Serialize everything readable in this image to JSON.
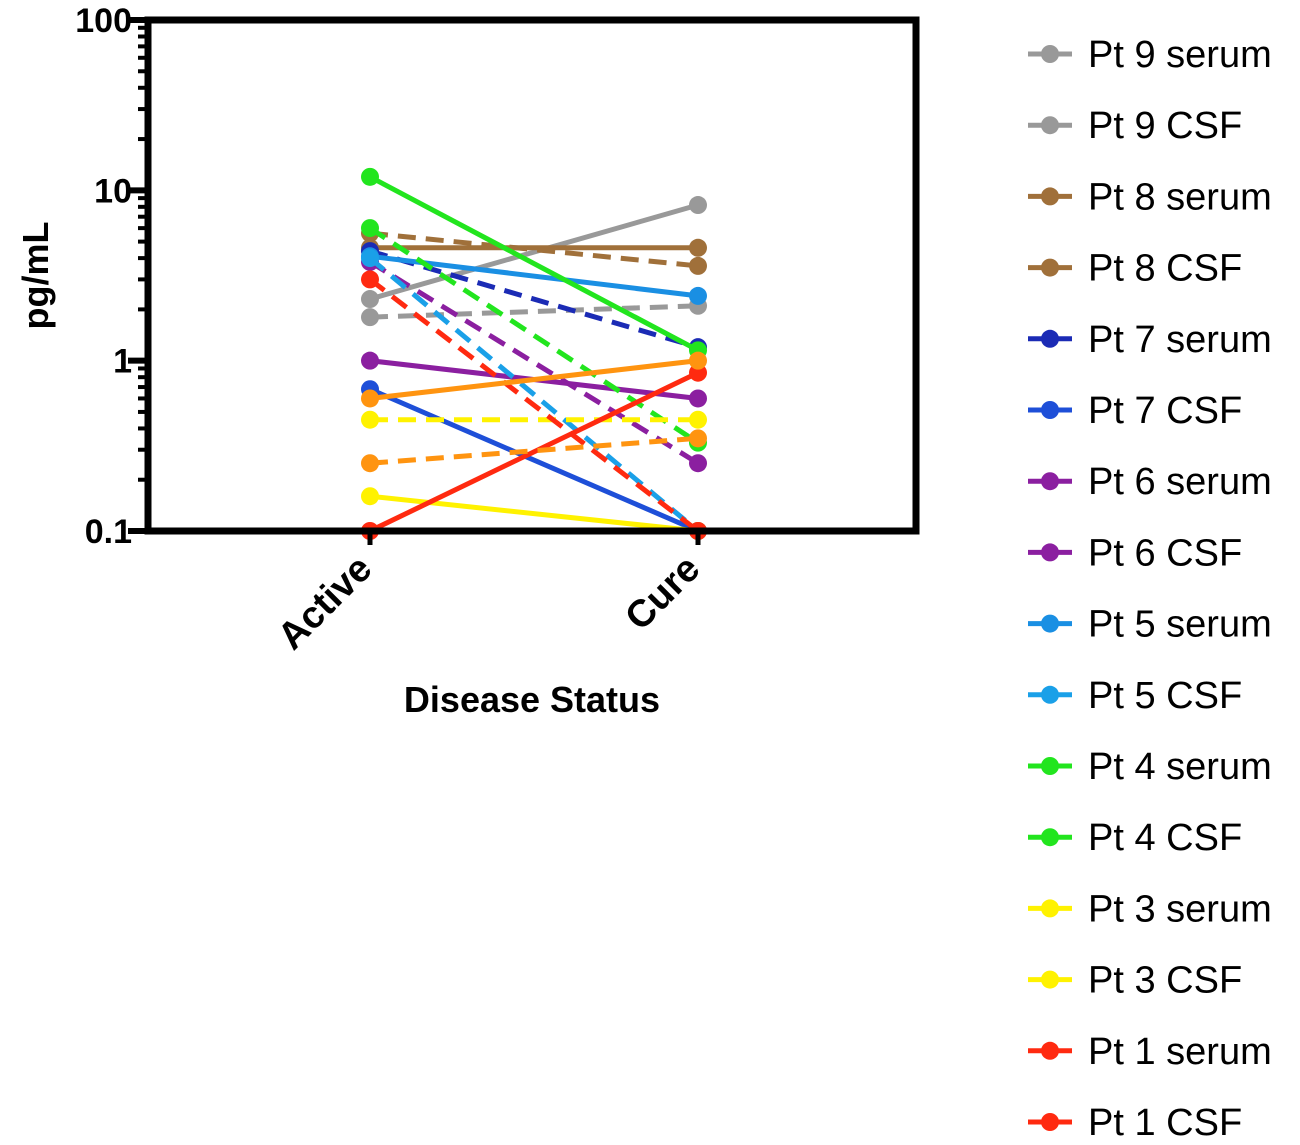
{
  "chart_data": {
    "type": "line",
    "title": "",
    "xlabel": "Disease Status",
    "ylabel": "pg/mL",
    "yscale": "log",
    "ylim": [
      0.1,
      100
    ],
    "yticks": [
      {
        "value": 0.1,
        "label": "0.1"
      },
      {
        "value": 1,
        "label": "1"
      },
      {
        "value": 10,
        "label": "10"
      },
      {
        "value": 100,
        "label": "100"
      }
    ],
    "categories": [
      "Active",
      "Cure"
    ],
    "grid": false,
    "legend_position": "right",
    "series": [
      {
        "name": "Pt 9 serum",
        "values": [
          2.3,
          8.2
        ],
        "color": "#999999",
        "dash": false
      },
      {
        "name": "Pt 9 CSF",
        "values": [
          1.8,
          2.1
        ],
        "color": "#999999",
        "dash": true
      },
      {
        "name": "Pt 8 serum",
        "values": [
          4.6,
          4.6
        ],
        "color": "#A0703A",
        "dash": false
      },
      {
        "name": "Pt 8 CSF",
        "values": [
          5.6,
          3.6
        ],
        "color": "#A0703A",
        "dash": true
      },
      {
        "name": "Pt 7 serum",
        "values": [
          4.4,
          1.2
        ],
        "color": "#1B2BB5",
        "dash": true
      },
      {
        "name": "Pt 7 CSF",
        "values": [
          0.68,
          0.1
        ],
        "color": "#1E4FD8",
        "dash": false
      },
      {
        "name": "Pt 6 serum",
        "values": [
          1.0,
          0.6
        ],
        "color": "#8B1FA0",
        "dash": false
      },
      {
        "name": "Pt 6 CSF",
        "values": [
          3.8,
          0.25
        ],
        "color": "#8B1FA0",
        "dash": true
      },
      {
        "name": "Pt 5 serum",
        "values": [
          4.1,
          2.4
        ],
        "color": "#1A8FE3",
        "dash": false
      },
      {
        "name": "Pt 5 CSF",
        "values": [
          4.0,
          0.1
        ],
        "color": "#1AA0E8",
        "dash": true
      },
      {
        "name": "Pt 4 serum",
        "values": [
          12,
          1.15
        ],
        "color": "#22E51E",
        "dash": false
      },
      {
        "name": "Pt 4 CSF",
        "values": [
          6.0,
          0.33
        ],
        "color": "#22E51E",
        "dash": true
      },
      {
        "name": "Pt 3 serum",
        "values": [
          0.16,
          0.1
        ],
        "color": "#FFF200",
        "dash": false
      },
      {
        "name": "Pt 3 CSF",
        "values": [
          0.45,
          0.45
        ],
        "color": "#FFF200",
        "dash": true
      },
      {
        "name": "Pt 1 serum",
        "values": [
          0.1,
          0.85
        ],
        "color": "#FF2A10",
        "dash": false
      },
      {
        "name": "Pt 1 CSF",
        "values": [
          3.0,
          0.1
        ],
        "color": "#FF2A10",
        "dash": true
      },
      {
        "name": "",
        "values": [
          0.6,
          1.0
        ],
        "color": "#FF9410",
        "dash": false,
        "legend": false
      },
      {
        "name": "",
        "values": [
          0.25,
          0.35
        ],
        "color": "#FF9410",
        "dash": true,
        "legend": false
      }
    ]
  }
}
